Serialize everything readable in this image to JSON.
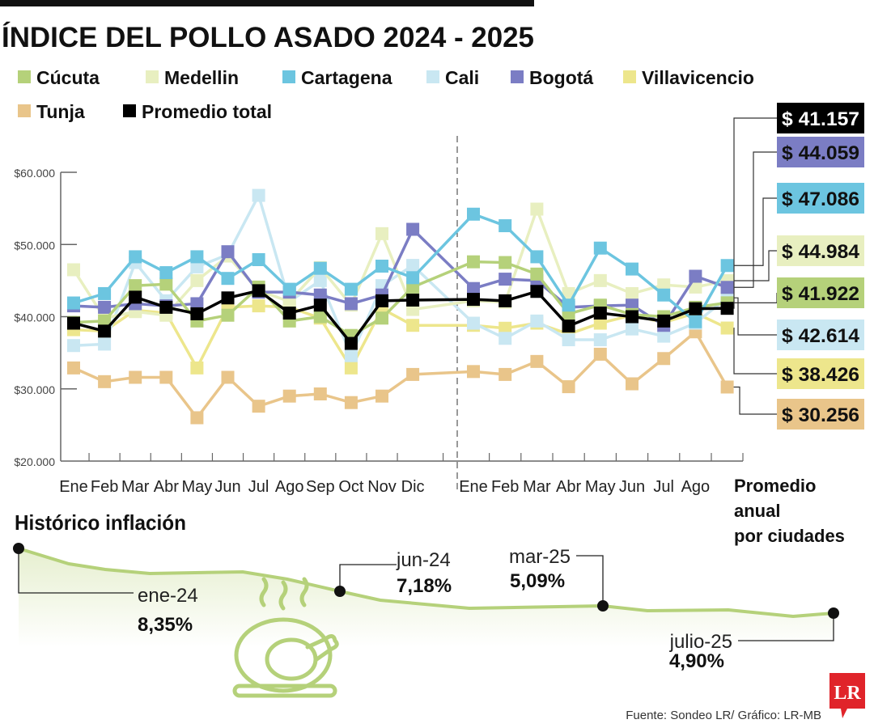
{
  "title": "ÍNDICE DEL POLLO ASADO 2024 - 2025",
  "source": "Fuente: Sondeo LR/ Gráfico: LR-MB",
  "logo": "LR",
  "chart_data": [
    {
      "type": "line",
      "title": "ÍNDICE DEL POLLO ASADO 2024 - 2025",
      "categories_2024": [
        "Ene",
        "Feb",
        "Mar",
        "Abr",
        "May",
        "Jun",
        "Jul",
        "Ago",
        "Sep",
        "Oct",
        "Nov",
        "Dic"
      ],
      "categories_2025": [
        "Ene",
        "Feb",
        "Mar",
        "Abr",
        "May",
        "Jun",
        "Jul",
        "Ago"
      ],
      "average_label": [
        "Promedio",
        "anual",
        "por ciudades"
      ],
      "y_ticks": [
        "$60.000",
        "$50.000",
        "$40.000",
        "$30.000",
        "$20.000"
      ],
      "ylim": [
        20000,
        60000
      ],
      "grid": false,
      "legend_placement": "top",
      "series": [
        {
          "name": "Tunja",
          "color": "#e9c58a",
          "values": [
            32900,
            31000,
            31600,
            31600,
            26000,
            31600,
            27600,
            29000,
            29300,
            28100,
            29000,
            32000,
            32400,
            32000,
            33800,
            30300,
            34800,
            30700,
            34200,
            37900
          ],
          "average": 30256,
          "average_label": "$ 30.256"
        },
        {
          "name": "Villavicencio",
          "color": "#ede68c",
          "values": [
            38200,
            38000,
            40900,
            40500,
            32900,
            41300,
            41500,
            41300,
            39800,
            32900,
            41100,
            38800,
            38800,
            38400,
            39100,
            37600,
            39100,
            40200,
            39200,
            40500
          ],
          "average": 38426,
          "average_label": "$ 38.426"
        },
        {
          "name": "Cali",
          "color": "#c9e7f2",
          "values": [
            36000,
            36200,
            47500,
            42200,
            46900,
            48600,
            56800,
            42100,
            45000,
            34600,
            44300,
            47100,
            39100,
            37000,
            39400,
            36800,
            36800,
            38300,
            37300,
            39100
          ],
          "average": 42614,
          "average_label": "$ 42.614"
        },
        {
          "name": "Medellin",
          "color": "#e8efc0",
          "values": [
            46500,
            39800,
            40700,
            40200,
            45000,
            48400,
            43600,
            42100,
            46800,
            41600,
            51500,
            41000,
            42200,
            42000,
            54900,
            43200,
            45000,
            43200,
            44400,
            44100
          ],
          "average": 44984,
          "average_label": "$ 44.984"
        },
        {
          "name": "Bogotá",
          "color": "#7b7dc4",
          "values": [
            41500,
            41300,
            41800,
            41500,
            41800,
            49000,
            43400,
            43400,
            43000,
            41800,
            43000,
            52100,
            43900,
            45200,
            45000,
            41300,
            41500,
            41600,
            38800,
            45600
          ],
          "average": 44059,
          "average_label": "$ 44.059"
        },
        {
          "name": "Cúcuta",
          "color": "#b5d17a",
          "values": [
            39200,
            39400,
            44300,
            44500,
            39400,
            40200,
            44100,
            39400,
            40000,
            37400,
            39800,
            44100,
            47600,
            47500,
            45900,
            40400,
            41600,
            40300,
            40000,
            41300
          ],
          "average": 41922,
          "average_label": "$ 41.922"
        },
        {
          "name": "Cartagena",
          "color": "#6cc5e0",
          "values": [
            41900,
            43200,
            48300,
            46100,
            48300,
            45300,
            47900,
            43800,
            46700,
            43800,
            47000,
            45400,
            54200,
            52600,
            48300,
            41600,
            49500,
            46600,
            43000,
            39300
          ],
          "average": 47086,
          "average_label": "$ 47.086"
        },
        {
          "name": "Promedio total",
          "color": "#000000",
          "values": [
            39100,
            38000,
            42700,
            41300,
            40400,
            42600,
            43600,
            40500,
            41600,
            36300,
            42200,
            42300,
            42400,
            42200,
            43500,
            38700,
            40500,
            40000,
            39400,
            41100
          ],
          "average": 41157,
          "average_label": "$ 41.157"
        }
      ]
    },
    {
      "type": "line",
      "title": "Histórico inflación",
      "points": [
        {
          "label": "ene-24",
          "value": 8.35,
          "value_label": "8,35%"
        },
        {
          "label": "jun-24",
          "value": 7.18,
          "value_label": "7,18%"
        },
        {
          "label": "mar-25",
          "value": 5.09,
          "value_label": "5,09%"
        },
        {
          "label": "julio-25",
          "value": 4.9,
          "value_label": "4,90%"
        }
      ],
      "color": "#b5d17a"
    }
  ]
}
